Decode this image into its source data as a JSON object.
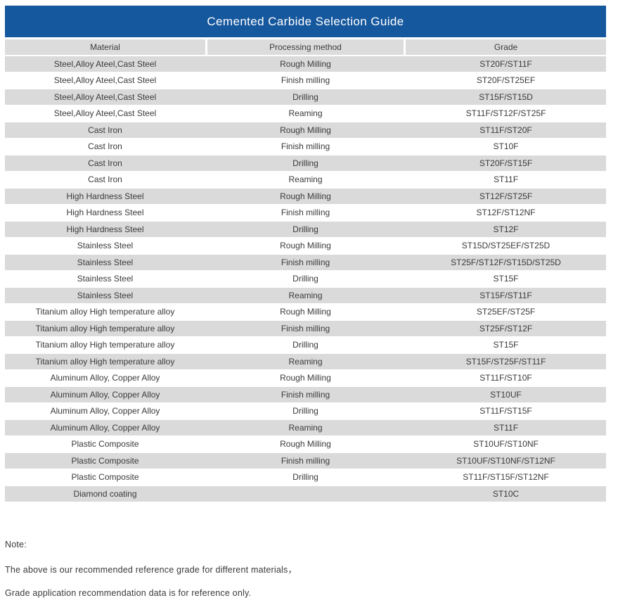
{
  "title": "Cemented Carbide Selection Guide",
  "colors": {
    "title_bar_bg": "#16589E",
    "title_text": "#FFFFFF",
    "header_row_bg": "#DCDCDC",
    "alt_row_bg": "#DADADA",
    "plain_row_bg": "#FFFFFF",
    "body_text": "#3A3A3A"
  },
  "table": {
    "columns": [
      "Material",
      "Processing method",
      "Grade"
    ],
    "rows": [
      [
        "Steel,Alloy Ateel,Cast Steel",
        "Rough  Milling",
        "ST20F/ST11F"
      ],
      [
        "Steel,Alloy Ateel,Cast Steel",
        "Finish milling",
        "ST20F/ST25EF"
      ],
      [
        "Steel,Alloy Ateel,Cast Steel",
        "Drilling",
        "ST15F/ST15D"
      ],
      [
        "Steel,Alloy Ateel,Cast Steel",
        "Reaming",
        "ST11F/ST12F/ST25F"
      ],
      [
        "Cast Iron",
        "Rough  Milling",
        "ST11F/ST20F"
      ],
      [
        "Cast Iron",
        "Finish milling",
        "ST10F"
      ],
      [
        "Cast Iron",
        "Drilling",
        "ST20F/ST15F"
      ],
      [
        "Cast Iron",
        "Reaming",
        "ST11F"
      ],
      [
        "High Hardness Steel",
        "Rough  Milling",
        "ST12F/ST25F"
      ],
      [
        "High Hardness Steel",
        "Finish milling",
        "ST12F/ST12NF"
      ],
      [
        "High Hardness Steel",
        "Drilling",
        "ST12F"
      ],
      [
        "Stainless Steel",
        "Rough  Milling",
        "ST15D/ST25EF/ST25D"
      ],
      [
        "Stainless Steel",
        "Finish milling",
        "ST25F/ST12F/ST15D/ST25D"
      ],
      [
        "Stainless Steel",
        "Drilling",
        "ST15F"
      ],
      [
        "Stainless Steel",
        "Reaming",
        "ST15F/ST11F"
      ],
      [
        "Titanium alloy High temperature alloy",
        "Rough  Milling",
        "ST25EF/ST25F"
      ],
      [
        "Titanium alloy High temperature alloy",
        "Finish milling",
        "ST25F/ST12F"
      ],
      [
        "Titanium alloy High temperature alloy",
        "Drilling",
        "ST15F"
      ],
      [
        "Titanium alloy High temperature alloy",
        "Reaming",
        "ST15F/ST25F/ST11F"
      ],
      [
        "Aluminum Alloy, Copper Alloy",
        "Rough  Milling",
        "ST11F/ST10F"
      ],
      [
        "Aluminum Alloy, Copper Alloy",
        "Finish milling",
        "ST10UF"
      ],
      [
        "Aluminum Alloy, Copper Alloy",
        "Drilling",
        "ST11F/ST15F"
      ],
      [
        "Aluminum Alloy, Copper Alloy",
        "Reaming",
        "ST11F"
      ],
      [
        "Plastic Composite",
        "Rough  Milling",
        "ST10UF/ST10NF"
      ],
      [
        "Plastic Composite",
        "Finish milling",
        "ST10UF/ST10NF/ST12NF"
      ],
      [
        "Plastic Composite",
        "Drilling",
        "ST11F/ST15F/ST12NF"
      ],
      [
        "Diamond coating",
        "",
        "ST10C"
      ]
    ]
  },
  "notes": {
    "label": "Note:",
    "lines": [
      "The above is our recommended reference grade for different materials，",
      "Grade application recommendation data is for reference only."
    ]
  }
}
